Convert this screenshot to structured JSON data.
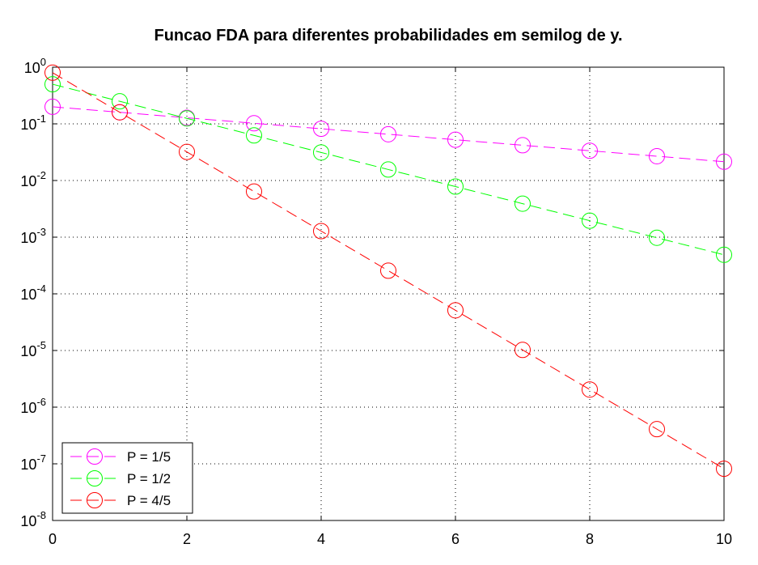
{
  "chart_data": {
    "type": "line",
    "title": "Funcao FDA para diferentes probabilidades em semilog de y.",
    "xlabel": "",
    "ylabel": "",
    "xlim": [
      0,
      10
    ],
    "ylim": [
      1e-08,
      1
    ],
    "yscale": "log",
    "grid": true,
    "legend_position": "bottom-left",
    "x_ticks": [
      {
        "value": 0,
        "label": "0"
      },
      {
        "value": 2,
        "label": "2"
      },
      {
        "value": 4,
        "label": "4"
      },
      {
        "value": 6,
        "label": "6"
      },
      {
        "value": 8,
        "label": "8"
      },
      {
        "value": 10,
        "label": "10"
      }
    ],
    "y_ticks": [
      {
        "exp": 0,
        "base": "10",
        "sup": "0"
      },
      {
        "exp": -1,
        "base": "10",
        "sup": "-1"
      },
      {
        "exp": -2,
        "base": "10",
        "sup": "-2"
      },
      {
        "exp": -3,
        "base": "10",
        "sup": "-3"
      },
      {
        "exp": -4,
        "base": "10",
        "sup": "-4"
      },
      {
        "exp": -5,
        "base": "10",
        "sup": "-5"
      },
      {
        "exp": -6,
        "base": "10",
        "sup": "-6"
      },
      {
        "exp": -7,
        "base": "10",
        "sup": "-7"
      },
      {
        "exp": -8,
        "base": "10",
        "sup": "-8"
      }
    ],
    "x": [
      0,
      1,
      2,
      3,
      4,
      5,
      6,
      7,
      8,
      9,
      10
    ],
    "series": [
      {
        "name": "P = 1/5",
        "color": "#ff00ff",
        "marker": "circle",
        "line_style": "dashed",
        "values": [
          0.2,
          0.16,
          0.128,
          0.1024,
          0.08192,
          0.065536,
          0.0524288,
          0.04194304,
          0.033554432,
          0.0268435456,
          0.02147483648
        ]
      },
      {
        "name": "P = 1/2",
        "color": "#00ff00",
        "marker": "circle",
        "line_style": "dashed",
        "values": [
          0.5,
          0.25,
          0.125,
          0.0625,
          0.03125,
          0.015625,
          0.0078125,
          0.00390625,
          0.001953125,
          0.0009765625,
          0.00048828125
        ]
      },
      {
        "name": "P = 4/5",
        "color": "#ff0000",
        "marker": "circle",
        "line_style": "dashed",
        "values": [
          0.8,
          0.16,
          0.032,
          0.0064,
          0.00128,
          0.000256,
          5.12e-05,
          1.024e-05,
          2.048e-06,
          4.096e-07,
          8.192e-08
        ]
      }
    ]
  }
}
